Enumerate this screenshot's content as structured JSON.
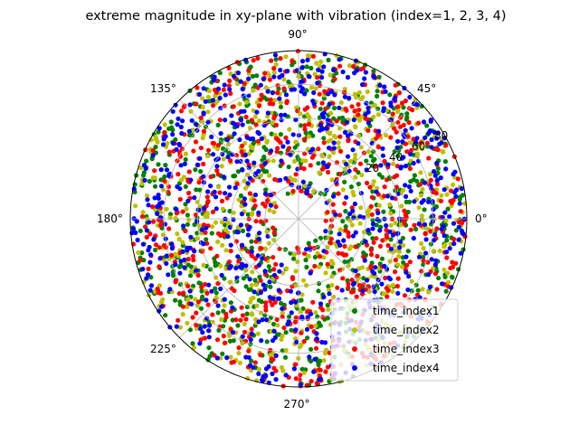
{
  "chart_data": {
    "type": "scatter",
    "projection": "polar",
    "title": "extreme magnitude in xy-plane with vibration (index=1, 2, 3, 4)",
    "angle_tick_labels": [
      "0°",
      "45°",
      "90°",
      "135°",
      "180°",
      "225°",
      "270°"
    ],
    "radial_tick_labels": [
      "20",
      "40",
      "60",
      "80"
    ],
    "radial_tick_values": [
      20,
      40,
      60,
      80
    ],
    "radial_limit": [
      0,
      100
    ],
    "grid": true,
    "legend_position": "lower right",
    "series": [
      {
        "name": "time_index1",
        "color": "#008000",
        "count": 650,
        "r_range": [
          15,
          100
        ]
      },
      {
        "name": "time_index2",
        "color": "#bfbf00",
        "count": 650,
        "r_range": [
          15,
          100
        ]
      },
      {
        "name": "time_index3",
        "color": "#ff0000",
        "count": 650,
        "r_range": [
          15,
          100
        ]
      },
      {
        "name": "time_index4",
        "color": "#0000ff",
        "count": 650,
        "r_range": [
          15,
          100
        ]
      }
    ]
  }
}
